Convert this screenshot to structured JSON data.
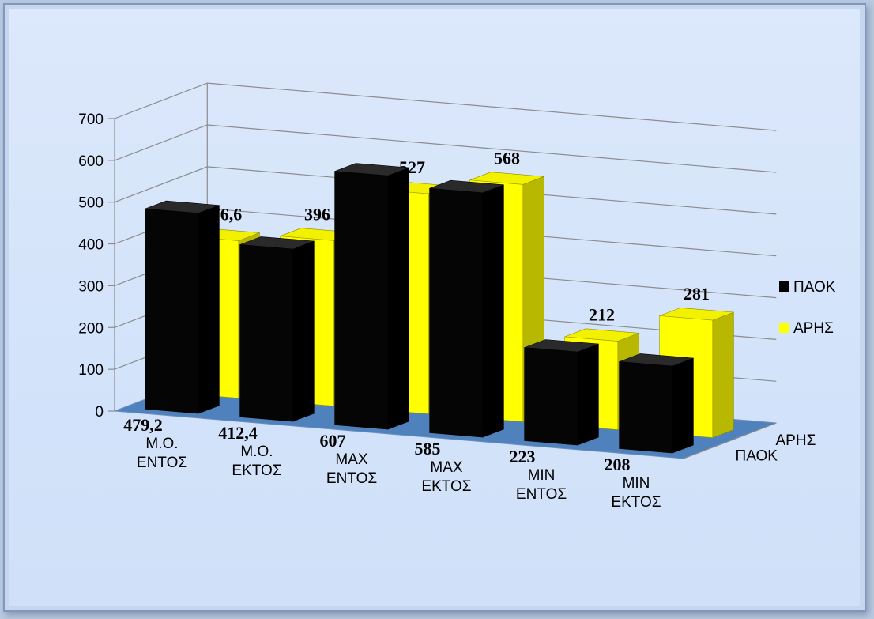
{
  "chart_data": {
    "type": "bar",
    "categories": [
      [
        "Μ.Ο.",
        "ΕΝΤΟΣ"
      ],
      [
        "Μ.Ο.",
        "ΕΚΤΟΣ"
      ],
      [
        "MAX",
        "ΕΝΤΟΣ"
      ],
      [
        "MAX",
        "ΕΚΤΟΣ"
      ],
      [
        "MIN",
        "ΕΝΤΟΣ"
      ],
      [
        "MIN",
        "ΕΚΤΟΣ"
      ]
    ],
    "series": [
      {
        "name": "ΠΑΟΚ",
        "color": "#000000",
        "values": [
          479.2,
          412.4,
          607,
          585,
          223,
          208
        ],
        "labels": [
          "479,2",
          "412,4",
          "607",
          "585",
          "223",
          "208"
        ]
      },
      {
        "name": "ΑΡΗΣ",
        "color": "#ffff00",
        "values": [
          376.6,
          396,
          527,
          568,
          212,
          281
        ],
        "labels": [
          "376,6",
          "396",
          "527",
          "568",
          "212",
          "281"
        ]
      }
    ],
    "ylim": [
      0,
      700
    ],
    "yticks": [
      0,
      100,
      200,
      300,
      400,
      500,
      600,
      700
    ],
    "depth_labels": [
      "ΑΡΗΣ",
      "ΠΑΟΚ"
    ],
    "legend_position": "right",
    "grid": true,
    "floor_color": "#4f81bd"
  }
}
